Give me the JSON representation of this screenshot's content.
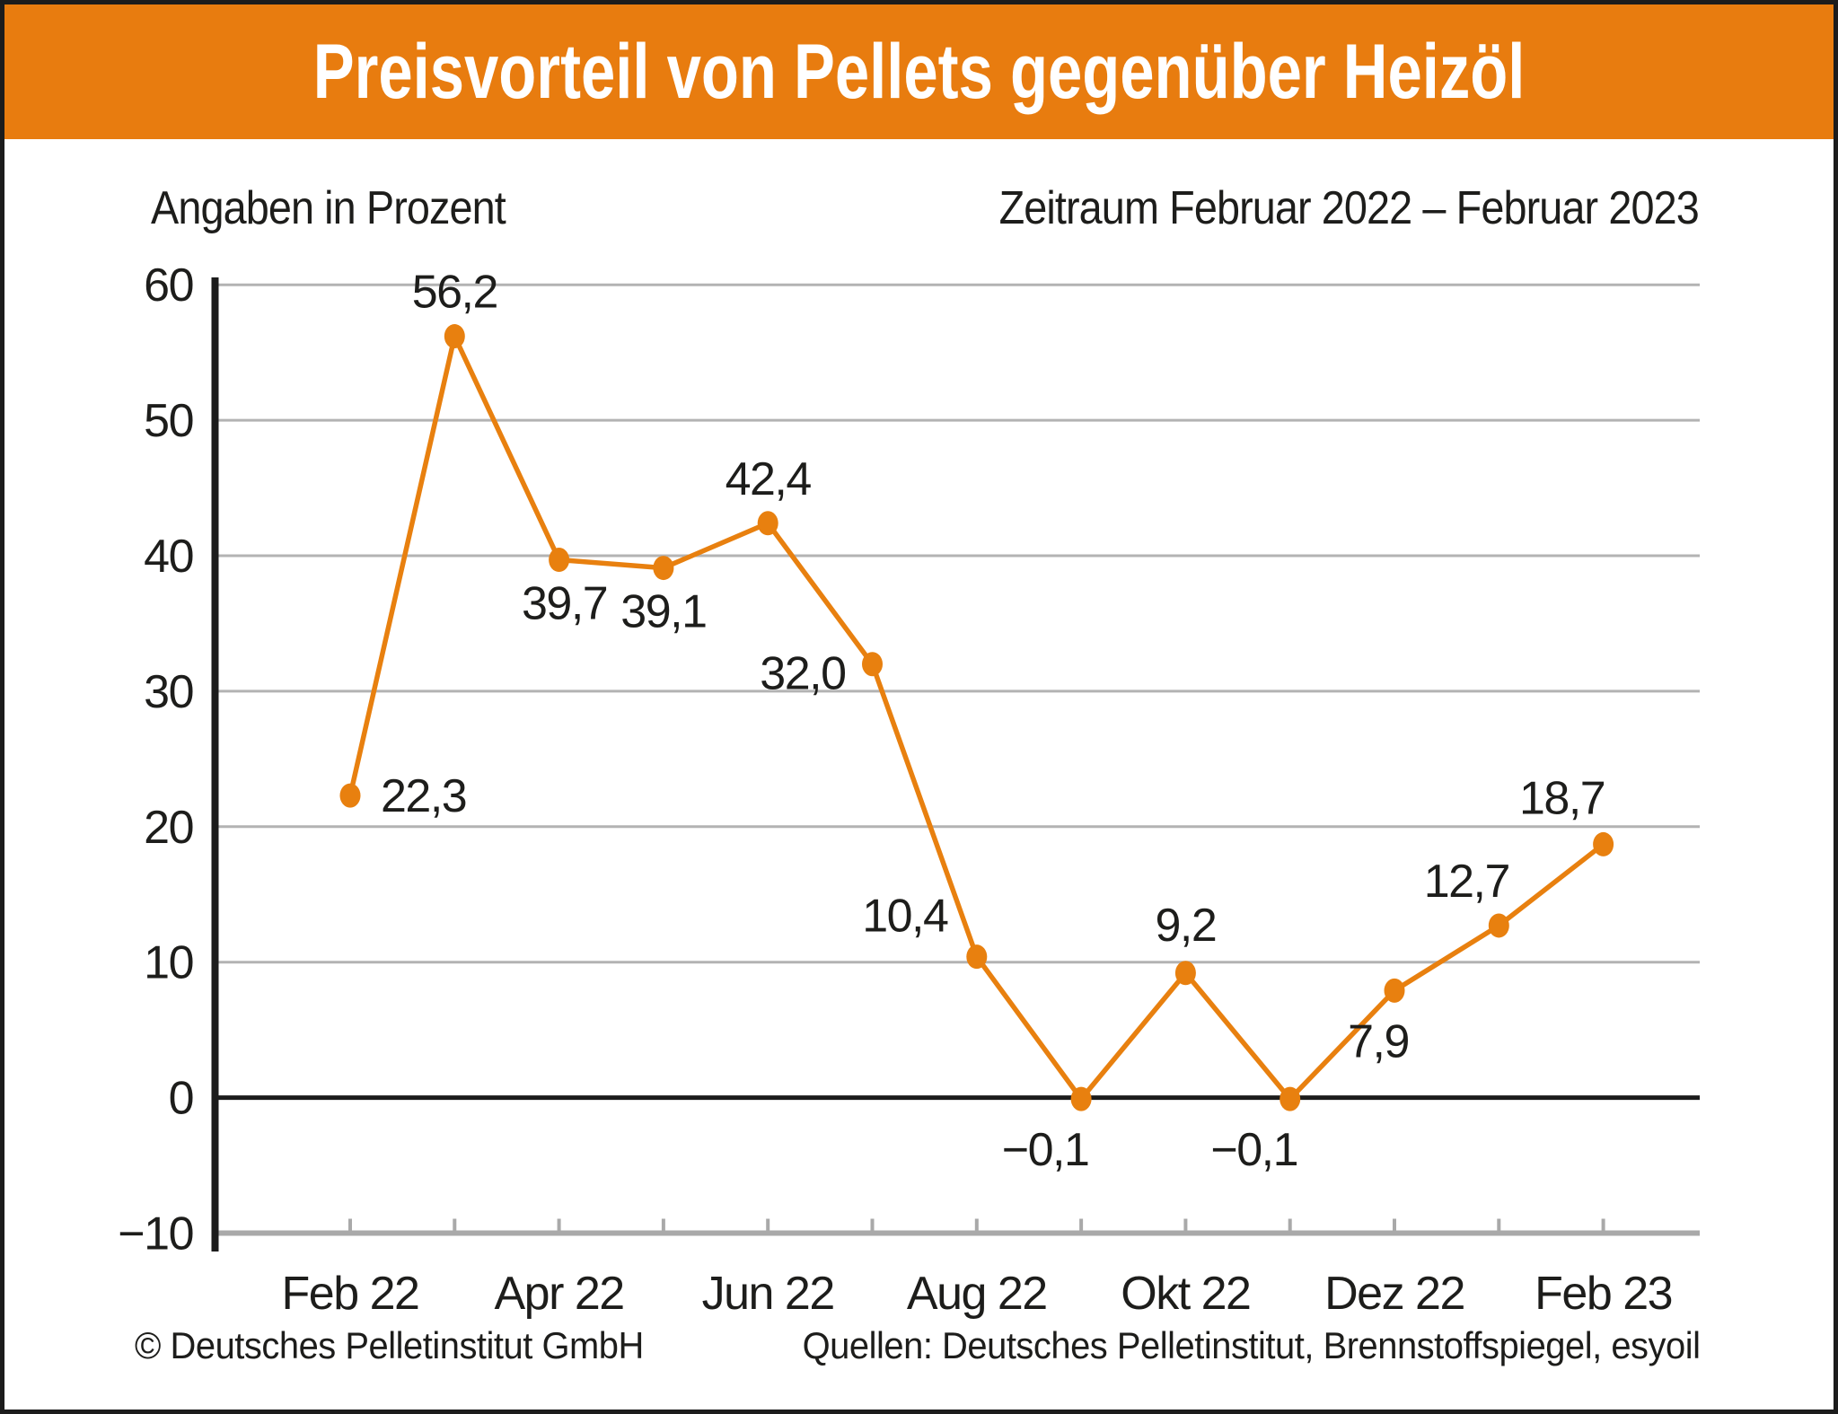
{
  "header": {
    "title": "Preisvorteil von Pellets gegenüber Heizöl"
  },
  "subtitles": {
    "left": "Angaben in Prozent",
    "right": "Zeitraum Februar 2022 – Februar 2023"
  },
  "footer": {
    "copyright": "© Deutsches Pelletinstitut GmbH",
    "sources": "Quellen: Deutsches Pelletinstitut, Brennstoffspiegel, esyoil"
  },
  "colors": {
    "banner_orange": "#e87c0f",
    "series_orange": "#e8800f",
    "grid_gray": "#b3b3b3",
    "axis_gray": "#a9a9a9",
    "ink_black": "#1c1c1c",
    "text": "#1d1d1b"
  },
  "chart_data": {
    "type": "line",
    "title": "Preisvorteil von Pellets gegenüber Heizöl",
    "unit_note": "Angaben in Prozent",
    "period_note": "Zeitraum Februar 2022 – Februar 2023",
    "ylim": [
      -10,
      60
    ],
    "ytick_step": 10,
    "grid": true,
    "legend": "none",
    "zero_line": true,
    "n_points": 13,
    "y_ticks": [
      {
        "label": "60",
        "value": 60
      },
      {
        "label": "50",
        "value": 50
      },
      {
        "label": "40",
        "value": 40
      },
      {
        "label": "30",
        "value": 30
      },
      {
        "label": "20",
        "value": 20
      },
      {
        "label": "10",
        "value": 10
      },
      {
        "label": "0",
        "value": 0
      },
      {
        "label": "−10",
        "value": -10
      }
    ],
    "x_tick_labels": [
      {
        "label": "Feb 22",
        "month_index": 0
      },
      {
        "label": "Apr 22",
        "month_index": 2
      },
      {
        "label": "Jun 22",
        "month_index": 4
      },
      {
        "label": "Aug 22",
        "month_index": 6
      },
      {
        "label": "Okt 22",
        "month_index": 8
      },
      {
        "label": "Dez 22",
        "month_index": 10
      },
      {
        "label": "Feb 23",
        "month_index": 12
      }
    ],
    "series": [
      {
        "points": [
          {
            "value": 22.3,
            "label": "22,3",
            "anchor": "start",
            "dx": 34,
            "dy": 18
          },
          {
            "value": 56.2,
            "label": "56,2",
            "anchor": "middle",
            "dx": 0,
            "dy": -32
          },
          {
            "value": 39.7,
            "label": "39,7",
            "anchor": "middle",
            "dx": 6,
            "dy": 66
          },
          {
            "value": 39.1,
            "label": "39,1",
            "anchor": "middle",
            "dx": 0,
            "dy": 66
          },
          {
            "value": 42.4,
            "label": "42,4",
            "anchor": "middle",
            "dx": 0,
            "dy": -32
          },
          {
            "value": 32.0,
            "label": "32,0",
            "anchor": "end",
            "dx": -30,
            "dy": 28
          },
          {
            "value": 10.4,
            "label": "10,4",
            "anchor": "middle",
            "dx": -80,
            "dy": -28
          },
          {
            "value": -0.1,
            "label": "−0,1",
            "anchor": "middle",
            "dx": -40,
            "dy": 74
          },
          {
            "value": 9.2,
            "label": "9,2",
            "anchor": "middle",
            "dx": 0,
            "dy": -36
          },
          {
            "value": -0.1,
            "label": "−0,1",
            "anchor": "middle",
            "dx": -40,
            "dy": 74
          },
          {
            "value": 7.9,
            "label": "7,9",
            "anchor": "middle",
            "dx": -18,
            "dy": 74
          },
          {
            "value": 12.7,
            "label": "12,7",
            "anchor": "middle",
            "dx": -36,
            "dy": -32
          },
          {
            "value": 18.7,
            "label": "18,7",
            "anchor": "middle",
            "dx": -46,
            "dy": -34
          }
        ]
      }
    ]
  }
}
